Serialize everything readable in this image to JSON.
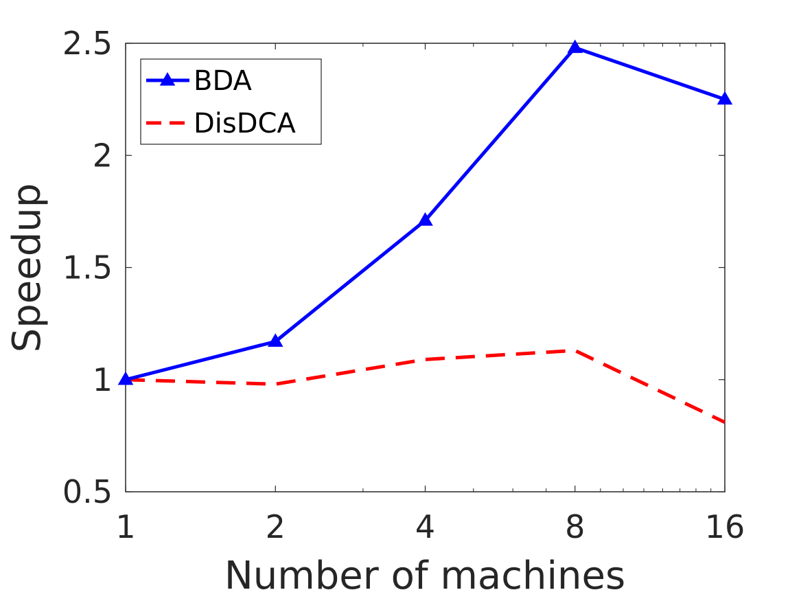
{
  "chart_data": {
    "type": "line",
    "xlabel": "Number of machines",
    "ylabel": "Speedup",
    "x_scale": "log2",
    "x": [
      1,
      2,
      4,
      8,
      16
    ],
    "x_tick_labels": [
      "1",
      "2",
      "4",
      "8",
      "16"
    ],
    "xlim": [
      1,
      16
    ],
    "ylim": [
      0.5,
      2.5
    ],
    "y_ticks": [
      0.5,
      1,
      1.5,
      2,
      2.5
    ],
    "y_tick_labels": [
      "0.5",
      "1",
      "1.5",
      "2",
      "2.5"
    ],
    "grid": false,
    "legend_position": "top-left",
    "series": [
      {
        "name": "BDA",
        "values": [
          1.0,
          1.17,
          1.71,
          2.48,
          2.25
        ],
        "color": "#0000ff",
        "style": "solid",
        "marker": "triangle"
      },
      {
        "name": "DisDCA",
        "values": [
          1.0,
          0.98,
          1.09,
          1.13,
          0.81
        ],
        "color": "#ff0000",
        "style": "dashed",
        "marker": "none"
      }
    ]
  }
}
